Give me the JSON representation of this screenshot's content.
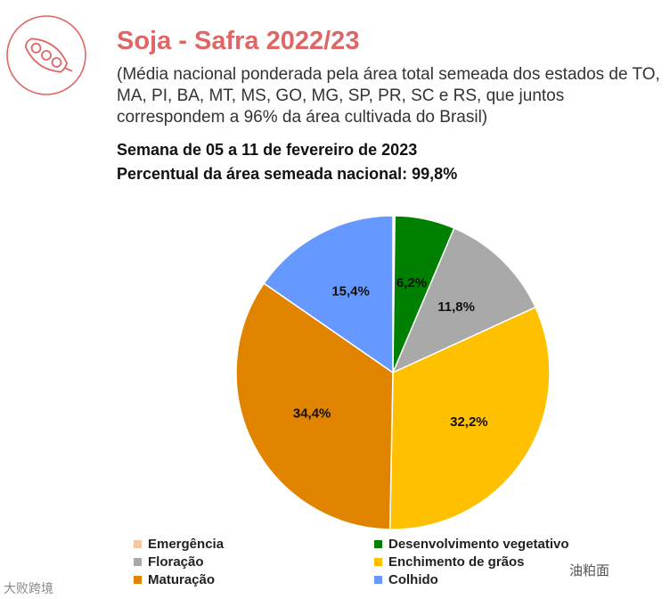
{
  "header": {
    "title": "Soja - Safra 2022/23",
    "subtitle": "(Média nacional ponderada pela área total semeada dos estados de TO, MA, PI, BA, MT, MS, GO, MG, SP, PR, SC e RS, que juntos correspondem a 96% da área cultivada do Brasil)",
    "week": "Semana de 05 a 11 de fevereiro de 2023",
    "sown_area": "Percentual da área semeada nacional: 99,8%"
  },
  "logo": {
    "icon": "soybean-pod-icon",
    "color": "#e06666"
  },
  "chart_data": {
    "type": "pie",
    "slices": [
      {
        "name": "Emergência",
        "value": 0.2,
        "label": "",
        "color": "#f4c7a6"
      },
      {
        "name": "Desenvolvimento vegetativo",
        "value": 6.2,
        "label": "6,2%",
        "color": "#008000"
      },
      {
        "name": "Floração",
        "value": 11.8,
        "label": "11,8%",
        "color": "#a9a9a9"
      },
      {
        "name": "Enchimento de grãos",
        "value": 32.2,
        "label": "32,2%",
        "color": "#ffc000"
      },
      {
        "name": "Maturação",
        "value": 34.4,
        "label": "34,4%",
        "color": "#e08400"
      },
      {
        "name": "Colhido",
        "value": 15.4,
        "label": "15,4%",
        "color": "#6699ff"
      }
    ],
    "legend_placement": "bottom"
  },
  "legend": {
    "items": [
      {
        "label": "Emergência",
        "color": "#f4c7a6"
      },
      {
        "label": "Desenvolvimento vegetativo",
        "color": "#008000"
      },
      {
        "label": "Floração",
        "color": "#a9a9a9"
      },
      {
        "label": "Enchimento de grãos",
        "color": "#ffc000"
      },
      {
        "label": "Maturação",
        "color": "#e08400"
      },
      {
        "label": "Colhido",
        "color": "#6699ff"
      }
    ]
  },
  "watermarks": {
    "left": "大败跨境",
    "right": "油粕面"
  }
}
